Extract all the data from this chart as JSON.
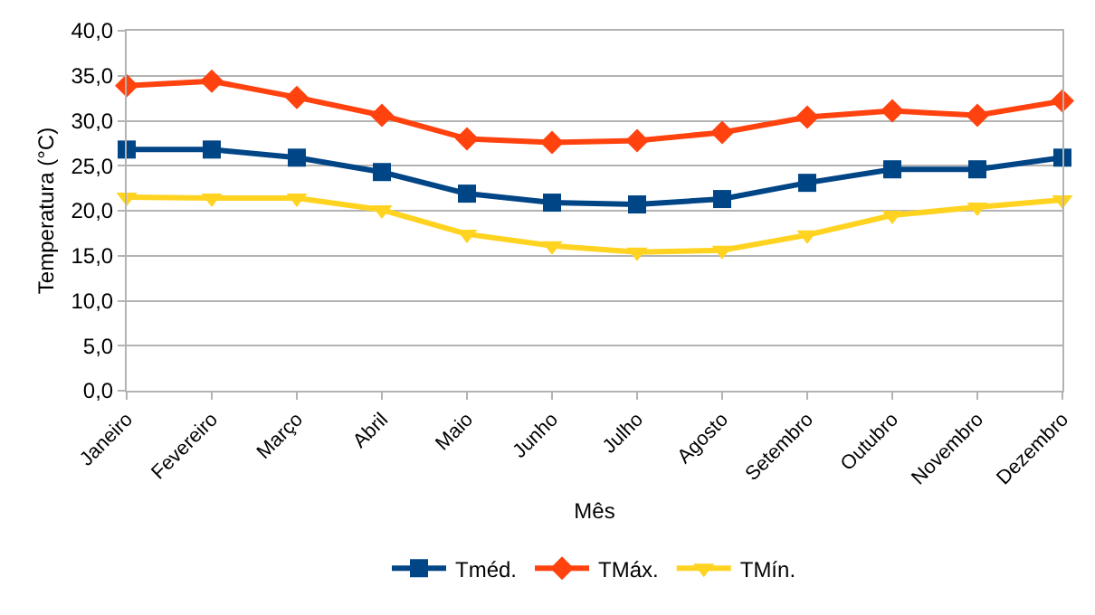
{
  "chart_data": {
    "type": "line",
    "xlabel": "Mês",
    "ylabel": "Temperatura (°C)",
    "categories": [
      "Janeiro",
      "Fevereiro",
      "Março",
      "Abril",
      "Maio",
      "Junho",
      "Julho",
      "Agosto",
      "Setembro",
      "Outubro",
      "Novembro",
      "Dezembro"
    ],
    "series": [
      {
        "name": "Tméd.",
        "color": "#004586",
        "marker": "square",
        "values": [
          26.8,
          26.8,
          25.9,
          24.3,
          21.9,
          20.9,
          20.7,
          21.3,
          23.1,
          24.6,
          24.6,
          25.9
        ]
      },
      {
        "name": "TMáx.",
        "color": "#ff420e",
        "marker": "diamond",
        "values": [
          33.9,
          34.4,
          32.6,
          30.6,
          28.0,
          27.6,
          27.8,
          28.7,
          30.4,
          31.1,
          30.6,
          32.2
        ]
      },
      {
        "name": "TMín.",
        "color": "#ffd320",
        "marker": "triangle",
        "values": [
          21.5,
          21.4,
          21.4,
          20.1,
          17.4,
          16.1,
          15.4,
          15.6,
          17.3,
          19.5,
          20.4,
          21.2
        ]
      }
    ],
    "ylim": [
      0,
      40
    ],
    "yticks": [
      {
        "value": 0,
        "label": "0,0"
      },
      {
        "value": 5,
        "label": "5,0"
      },
      {
        "value": 10,
        "label": "10,0"
      },
      {
        "value": 15,
        "label": "15,0"
      },
      {
        "value": 20,
        "label": "20,0"
      },
      {
        "value": 25,
        "label": "25,0"
      },
      {
        "value": 30,
        "label": "30,0"
      },
      {
        "value": 35,
        "label": "35,0"
      },
      {
        "value": 40,
        "label": "40,0"
      }
    ],
    "grid": "y",
    "legend": "bottom",
    "line_style": "solid"
  }
}
